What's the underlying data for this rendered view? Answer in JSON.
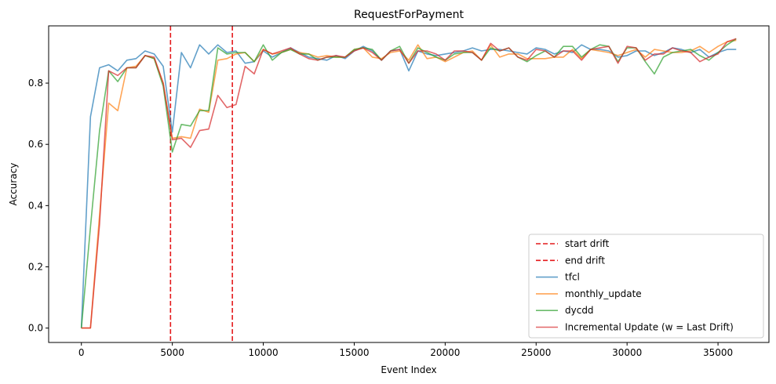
{
  "chart_data": {
    "type": "line",
    "title": "RequestForPayment",
    "xlabel": "Event Index",
    "ylabel": "Accuracy",
    "xlim": [
      -1800,
      37800
    ],
    "ylim": [
      -0.047,
      0.987
    ],
    "xticks": [
      0,
      5000,
      10000,
      15000,
      20000,
      25000,
      30000,
      35000
    ],
    "yticks": [
      0.0,
      0.2,
      0.4,
      0.6,
      0.8
    ],
    "ytick_labels": [
      "0.0",
      "0.2",
      "0.4",
      "0.6",
      "0.8"
    ],
    "grid": false,
    "legend_position": "lower-right",
    "vlines": [
      {
        "name": "start drift",
        "x": 4900,
        "color": "#e41a1c",
        "dashed": true
      },
      {
        "name": "end drift",
        "x": 8300,
        "color": "#e41a1c",
        "dashed": true
      }
    ],
    "x": [
      0,
      500,
      1000,
      1500,
      2000,
      2500,
      3000,
      3500,
      4000,
      4500,
      5000,
      5500,
      6000,
      6500,
      7000,
      7500,
      8000,
      8500,
      9000,
      9500,
      10000,
      10500,
      11000,
      11500,
      12000,
      12500,
      13000,
      13500,
      14000,
      14500,
      15000,
      15500,
      16000,
      16500,
      17000,
      17500,
      18000,
      18500,
      19000,
      19500,
      20000,
      20500,
      21000,
      21500,
      22000,
      22500,
      23000,
      23500,
      24000,
      24500,
      25000,
      25500,
      26000,
      26500,
      27000,
      27500,
      28000,
      28500,
      29000,
      29500,
      30000,
      30500,
      31000,
      31500,
      32000,
      32500,
      33000,
      33500,
      34000,
      34500,
      35000,
      35500,
      36000
    ],
    "series": [
      {
        "name": "tfcl",
        "color": "#1f77b4",
        "values": [
          0.0,
          0.69,
          0.85,
          0.86,
          0.84,
          0.875,
          0.88,
          0.905,
          0.895,
          0.855,
          0.64,
          0.9,
          0.85,
          0.925,
          0.895,
          0.925,
          0.9,
          0.905,
          0.865,
          0.87,
          0.905,
          0.885,
          0.9,
          0.915,
          0.9,
          0.885,
          0.88,
          0.875,
          0.89,
          0.88,
          0.905,
          0.92,
          0.905,
          0.875,
          0.905,
          0.91,
          0.84,
          0.905,
          0.895,
          0.89,
          0.895,
          0.9,
          0.905,
          0.915,
          0.905,
          0.91,
          0.91,
          0.905,
          0.9,
          0.895,
          0.915,
          0.91,
          0.895,
          0.905,
          0.9,
          0.925,
          0.91,
          0.91,
          0.905,
          0.885,
          0.89,
          0.905,
          0.905,
          0.89,
          0.9,
          0.915,
          0.91,
          0.9,
          0.91,
          0.885,
          0.9,
          0.91,
          0.91
        ]
      },
      {
        "name": "monthly_update",
        "color": "#ff7f0e",
        "values": [
          0.0,
          0.0,
          0.37,
          0.735,
          0.71,
          0.85,
          0.855,
          0.89,
          0.88,
          0.8,
          0.62,
          0.625,
          0.62,
          0.715,
          0.705,
          0.875,
          0.88,
          0.895,
          0.9,
          0.87,
          0.91,
          0.895,
          0.9,
          0.91,
          0.9,
          0.895,
          0.885,
          0.89,
          0.885,
          0.885,
          0.91,
          0.915,
          0.885,
          0.88,
          0.9,
          0.905,
          0.875,
          0.925,
          0.88,
          0.885,
          0.87,
          0.885,
          0.9,
          0.905,
          0.875,
          0.925,
          0.885,
          0.895,
          0.895,
          0.88,
          0.88,
          0.88,
          0.885,
          0.885,
          0.91,
          0.88,
          0.91,
          0.905,
          0.9,
          0.89,
          0.9,
          0.91,
          0.885,
          0.91,
          0.905,
          0.9,
          0.9,
          0.905,
          0.92,
          0.9,
          0.92,
          0.935,
          0.94
        ]
      },
      {
        "name": "dycdd",
        "color": "#2ca02c",
        "values": [
          0.0,
          0.33,
          0.645,
          0.84,
          0.805,
          0.85,
          0.85,
          0.89,
          0.88,
          0.79,
          0.575,
          0.665,
          0.66,
          0.71,
          0.71,
          0.915,
          0.895,
          0.9,
          0.9,
          0.87,
          0.925,
          0.875,
          0.9,
          0.91,
          0.895,
          0.895,
          0.875,
          0.885,
          0.885,
          0.885,
          0.91,
          0.915,
          0.91,
          0.875,
          0.905,
          0.92,
          0.865,
          0.915,
          0.9,
          0.885,
          0.875,
          0.895,
          0.9,
          0.9,
          0.875,
          0.915,
          0.905,
          0.915,
          0.885,
          0.87,
          0.89,
          0.905,
          0.885,
          0.92,
          0.92,
          0.885,
          0.91,
          0.925,
          0.92,
          0.87,
          0.915,
          0.915,
          0.87,
          0.83,
          0.885,
          0.9,
          0.905,
          0.91,
          0.89,
          0.875,
          0.9,
          0.925,
          0.945
        ]
      },
      {
        "name": "Incremental Update (w = Last Drift)",
        "color": "#d62728",
        "values": [
          0.0,
          0.0,
          0.34,
          0.84,
          0.825,
          0.85,
          0.85,
          0.89,
          0.885,
          0.8,
          0.615,
          0.62,
          0.59,
          0.645,
          0.65,
          0.76,
          0.72,
          0.73,
          0.855,
          0.83,
          0.91,
          0.895,
          0.905,
          0.915,
          0.895,
          0.88,
          0.875,
          0.885,
          0.89,
          0.885,
          0.905,
          0.915,
          0.9,
          0.875,
          0.905,
          0.91,
          0.865,
          0.905,
          0.905,
          0.895,
          0.875,
          0.905,
          0.905,
          0.9,
          0.875,
          0.93,
          0.905,
          0.915,
          0.885,
          0.875,
          0.91,
          0.905,
          0.885,
          0.905,
          0.905,
          0.875,
          0.91,
          0.915,
          0.92,
          0.865,
          0.92,
          0.915,
          0.875,
          0.895,
          0.895,
          0.915,
          0.905,
          0.9,
          0.87,
          0.885,
          0.895,
          0.935,
          0.945
        ]
      }
    ]
  }
}
